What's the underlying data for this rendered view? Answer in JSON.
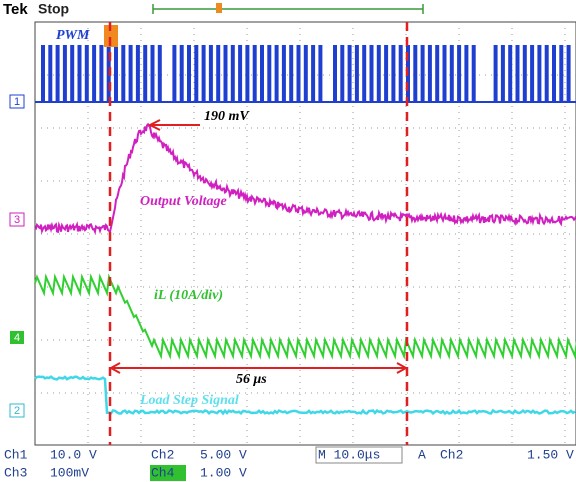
{
  "header": {
    "brand": "Tek",
    "state": "Stop"
  },
  "annotations": {
    "pwm": "PWM",
    "peak": "190 mV",
    "output": "Output Voltage",
    "inductor": "iL (10A/div)",
    "time": "56 μs",
    "load": "Load Step Signal"
  },
  "channel_markers": [
    "1",
    "3",
    "4",
    "2"
  ],
  "status": {
    "row1": [
      "Ch1",
      "10.0 V",
      "Ch2",
      "5.00 V",
      "M 10.0μs",
      "A",
      "Ch2",
      "1.50 V"
    ],
    "row2": [
      "Ch3",
      "100mV",
      "Ch4",
      "1.00 V"
    ]
  }
}
